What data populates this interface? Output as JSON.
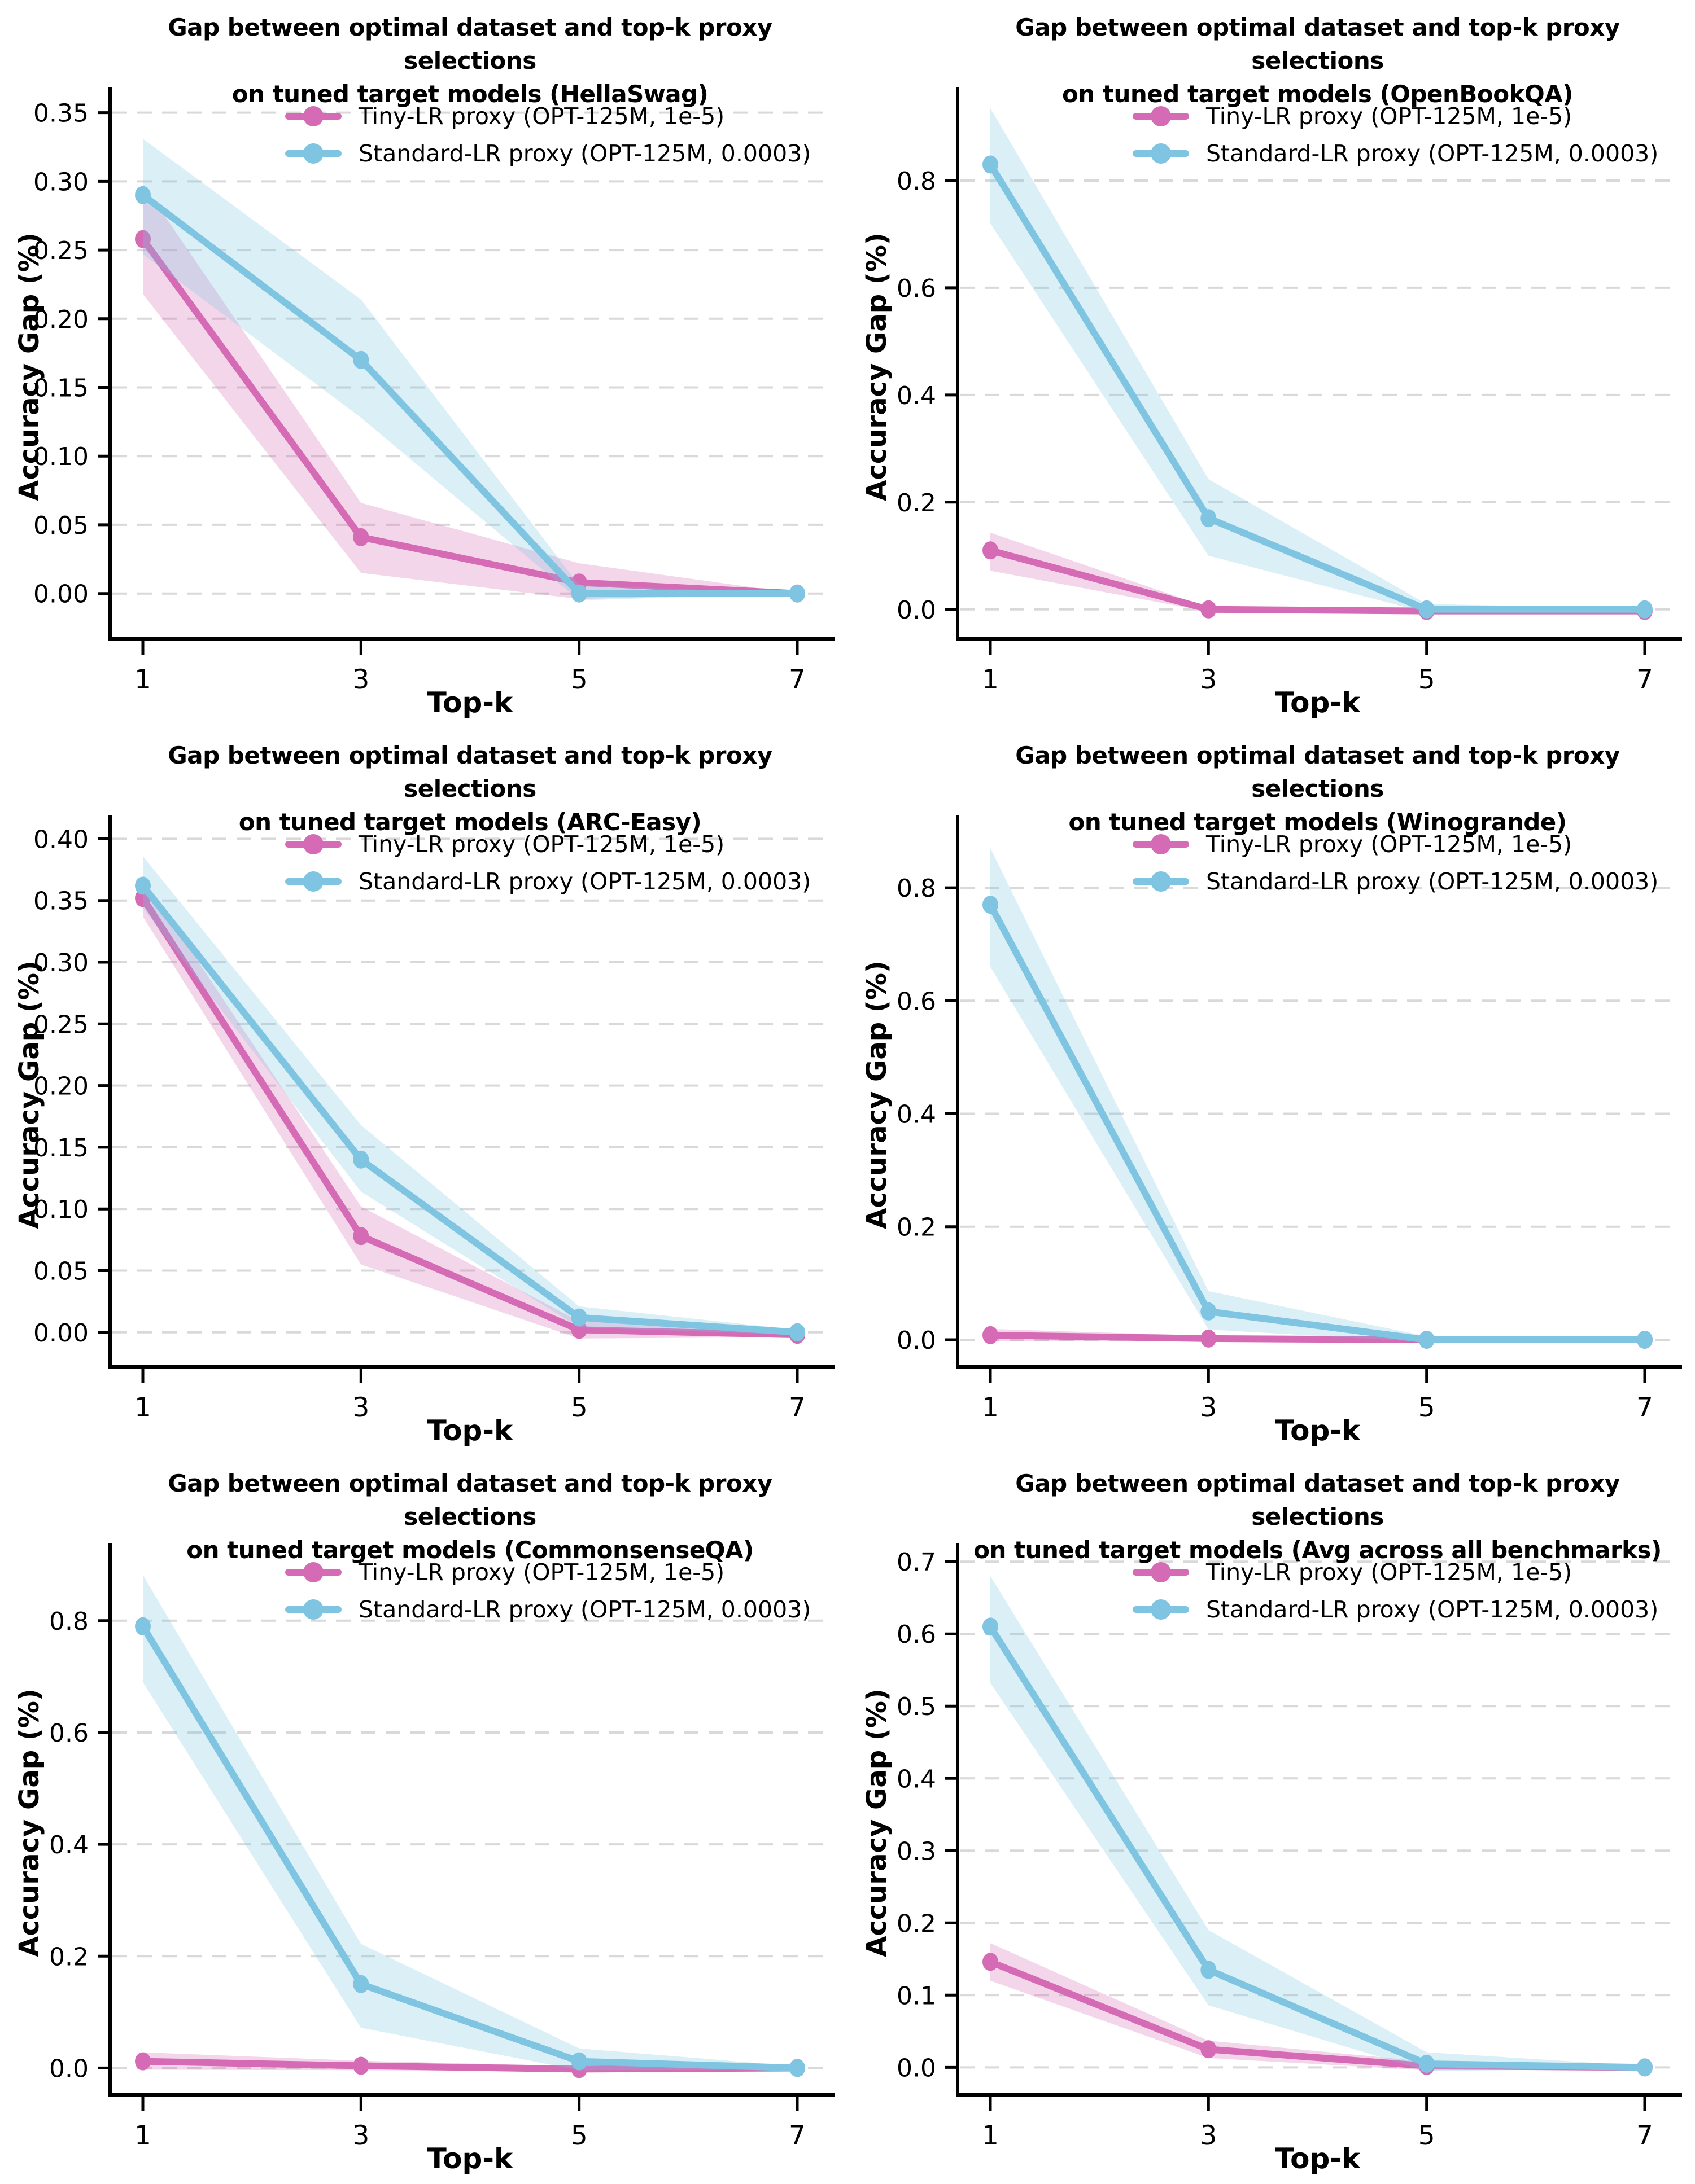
{
  "figure": {
    "background": "#ffffff"
  },
  "colors": {
    "tiny": "#d66bb5",
    "standard": "#7fc5e2",
    "grid": "#d9d9d9",
    "axis": "#000000",
    "band_opacity": 0.28
  },
  "legend": {
    "items": [
      {
        "key": "tiny",
        "label": "Tiny-LR proxy (OPT-125M, 1e-5)"
      },
      {
        "key": "standard",
        "label": "Standard-LR proxy (OPT-125M, 0.0003)"
      }
    ],
    "position": "upper center",
    "frame": false
  },
  "shared": {
    "xlabel": "Top-k",
    "ylabel": "Accuracy Gap (%)",
    "x_ticks": [
      1,
      3,
      5,
      7
    ]
  },
  "chart_data": [
    {
      "type": "line",
      "benchmark": "HellaSwag",
      "title_line1": "Gap between optimal dataset and top-k proxy selections",
      "title_line2": "on tuned target models (HellaSwag)",
      "xlabel": "Top-k",
      "ylabel": "Accuracy Gap (%)",
      "x": [
        1,
        3,
        5,
        7
      ],
      "xlim": [
        0.7,
        7.3
      ],
      "ylim": [
        -0.033,
        0.363
      ],
      "y_ticks": [
        0.0,
        0.05,
        0.1,
        0.15,
        0.2,
        0.25,
        0.3,
        0.35
      ],
      "y_tick_decimals": 2,
      "grid": "horizontal-dashed",
      "series": [
        {
          "key": "tiny",
          "name": "Tiny-LR proxy (OPT-125M, 1e-5)",
          "values": [
            0.258,
            0.041,
            0.008,
            0.0
          ],
          "band_low": [
            0.218,
            0.015,
            -0.004,
            0.0
          ],
          "band_high": [
            0.298,
            0.066,
            0.022,
            0.0
          ]
        },
        {
          "key": "standard",
          "name": "Standard-LR proxy (OPT-125M, 0.0003)",
          "values": [
            0.29,
            0.17,
            0.0,
            0.0
          ],
          "band_low": [
            0.247,
            0.128,
            -0.005,
            0.0
          ],
          "band_high": [
            0.331,
            0.214,
            0.006,
            0.0
          ]
        }
      ]
    },
    {
      "type": "line",
      "benchmark": "OpenBookQA",
      "title_line1": "Gap between optimal dataset and top-k proxy selections",
      "title_line2": "on tuned target models (OpenBookQA)",
      "xlabel": "Top-k",
      "ylabel": "Accuracy Gap (%)",
      "x": [
        1,
        3,
        5,
        7
      ],
      "xlim": [
        0.7,
        7.3
      ],
      "ylim": [
        -0.055,
        0.96
      ],
      "y_ticks": [
        0.0,
        0.2,
        0.4,
        0.6,
        0.8
      ],
      "y_tick_decimals": 1,
      "grid": "horizontal-dashed",
      "series": [
        {
          "key": "tiny",
          "name": "Tiny-LR proxy (OPT-125M, 1e-5)",
          "values": [
            0.11,
            0.0,
            -0.003,
            -0.003
          ],
          "band_low": [
            0.072,
            -0.004,
            -0.004,
            -0.004
          ],
          "band_high": [
            0.143,
            0.004,
            0.0,
            0.0
          ]
        },
        {
          "key": "standard",
          "name": "Standard-LR proxy (OPT-125M, 0.0003)",
          "values": [
            0.83,
            0.17,
            0.0,
            0.0
          ],
          "band_low": [
            0.72,
            0.1,
            -0.006,
            -0.002
          ],
          "band_high": [
            0.935,
            0.243,
            0.01,
            0.002
          ]
        }
      ]
    },
    {
      "type": "line",
      "benchmark": "ARC-Easy",
      "title_line1": "Gap between optimal dataset and top-k proxy selections",
      "title_line2": "on tuned target models (ARC-Easy)",
      "xlabel": "Top-k",
      "ylabel": "Accuracy Gap (%)",
      "x": [
        1,
        3,
        5,
        7
      ],
      "xlim": [
        0.7,
        7.3
      ],
      "ylim": [
        -0.028,
        0.413
      ],
      "y_ticks": [
        0.0,
        0.05,
        0.1,
        0.15,
        0.2,
        0.25,
        0.3,
        0.35,
        0.4
      ],
      "y_tick_decimals": 2,
      "grid": "horizontal-dashed",
      "series": [
        {
          "key": "tiny",
          "name": "Tiny-LR proxy (OPT-125M, 1e-5)",
          "values": [
            0.352,
            0.078,
            0.002,
            -0.002
          ],
          "band_low": [
            0.337,
            0.055,
            -0.005,
            -0.004
          ],
          "band_high": [
            0.368,
            0.102,
            0.009,
            0.0
          ]
        },
        {
          "key": "standard",
          "name": "Standard-LR proxy (OPT-125M, 0.0003)",
          "values": [
            0.362,
            0.14,
            0.012,
            0.0
          ],
          "band_low": [
            0.344,
            0.114,
            0.004,
            -0.002
          ],
          "band_high": [
            0.386,
            0.168,
            0.021,
            0.002
          ]
        }
      ]
    },
    {
      "type": "line",
      "benchmark": "Winogrande",
      "title_line1": "Gap between optimal dataset and top-k proxy selections",
      "title_line2": "on tuned target models (Winogrande)",
      "xlabel": "Top-k",
      "ylabel": "Accuracy Gap (%)",
      "x": [
        1,
        3,
        5,
        7
      ],
      "xlim": [
        0.7,
        7.3
      ],
      "ylim": [
        -0.048,
        0.915
      ],
      "y_ticks": [
        0.0,
        0.2,
        0.4,
        0.6,
        0.8
      ],
      "y_tick_decimals": 1,
      "grid": "horizontal-dashed",
      "series": [
        {
          "key": "tiny",
          "name": "Tiny-LR proxy (OPT-125M, 1e-5)",
          "values": [
            0.008,
            0.002,
            0.0,
            0.0
          ],
          "band_low": [
            -0.003,
            -0.003,
            -0.002,
            0.0
          ],
          "band_high": [
            0.019,
            0.007,
            0.002,
            0.0
          ]
        },
        {
          "key": "standard",
          "name": "Standard-LR proxy (OPT-125M, 0.0003)",
          "values": [
            0.77,
            0.05,
            0.0,
            0.0
          ],
          "band_low": [
            0.66,
            0.018,
            -0.004,
            -0.002
          ],
          "band_high": [
            0.87,
            0.086,
            0.006,
            0.002
          ]
        }
      ]
    },
    {
      "type": "line",
      "benchmark": "CommonsenseQA",
      "title_line1": "Gap between optimal dataset and top-k proxy selections",
      "title_line2": "on tuned target models (CommonsenseQA)",
      "xlabel": "Top-k",
      "ylabel": "Accuracy Gap (%)",
      "x": [
        1,
        3,
        5,
        7
      ],
      "xlim": [
        0.7,
        7.3
      ],
      "ylim": [
        -0.048,
        0.925
      ],
      "y_ticks": [
        0.0,
        0.2,
        0.4,
        0.6,
        0.8
      ],
      "y_tick_decimals": 1,
      "grid": "horizontal-dashed",
      "series": [
        {
          "key": "tiny",
          "name": "Tiny-LR proxy (OPT-125M, 1e-5)",
          "values": [
            0.012,
            0.004,
            -0.002,
            0.0
          ],
          "band_low": [
            -0.003,
            -0.004,
            -0.006,
            -0.002
          ],
          "band_high": [
            0.028,
            0.013,
            0.003,
            0.002
          ]
        },
        {
          "key": "standard",
          "name": "Standard-LR proxy (OPT-125M, 0.0003)",
          "values": [
            0.79,
            0.15,
            0.012,
            0.0
          ],
          "band_low": [
            0.69,
            0.072,
            -0.004,
            -0.003
          ],
          "band_high": [
            0.882,
            0.222,
            0.035,
            0.003
          ]
        }
      ]
    },
    {
      "type": "line",
      "benchmark": "Avg across all benchmarks",
      "title_line1": "Gap between optimal dataset and top-k proxy selections",
      "title_line2": "on tuned target models (Avg across all benchmarks)",
      "xlabel": "Top-k",
      "ylabel": "Accuracy Gap (%)",
      "x": [
        1,
        3,
        5,
        7
      ],
      "xlim": [
        0.7,
        7.3
      ],
      "ylim": [
        -0.038,
        0.715
      ],
      "y_ticks": [
        0.0,
        0.1,
        0.2,
        0.3,
        0.4,
        0.5,
        0.6,
        0.7
      ],
      "y_tick_decimals": 1,
      "grid": "horizontal-dashed",
      "series": [
        {
          "key": "tiny",
          "name": "Tiny-LR proxy (OPT-125M, 1e-5)",
          "values": [
            0.146,
            0.025,
            0.002,
            0.0
          ],
          "band_low": [
            0.12,
            0.013,
            -0.004,
            -0.002
          ],
          "band_high": [
            0.172,
            0.037,
            0.008,
            0.002
          ]
        },
        {
          "key": "standard",
          "name": "Standard-LR proxy (OPT-125M, 0.0003)",
          "values": [
            0.61,
            0.135,
            0.005,
            0.0
          ],
          "band_low": [
            0.532,
            0.086,
            -0.005,
            -0.002
          ],
          "band_high": [
            0.68,
            0.19,
            0.021,
            0.002
          ]
        }
      ]
    }
  ]
}
